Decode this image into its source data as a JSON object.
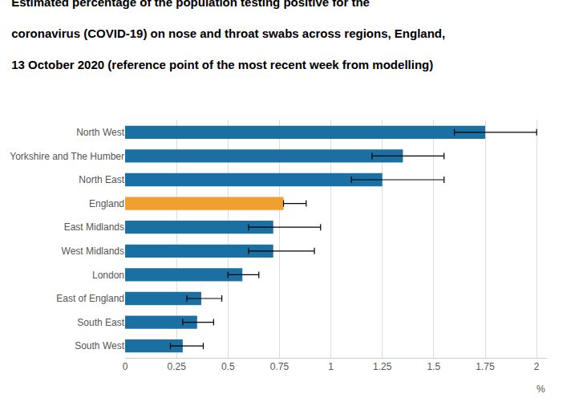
{
  "chart_data": {
    "type": "bar",
    "orientation": "horizontal",
    "title": "Estimated percentage of the population testing positive for the\ncoronavirus (COVID-19) on nose and throat swabs across regions, England,\n13 October 2020 (reference point of the most recent week from modelling)",
    "xlabel": "%",
    "categories": [
      "North West",
      "Yorkshire and The Humber",
      "North East",
      "England",
      "East Midlands",
      "West Midlands",
      "London",
      "East of England",
      "South East",
      "South West"
    ],
    "values": [
      1.75,
      1.35,
      1.25,
      0.77,
      0.72,
      0.72,
      0.57,
      0.37,
      0.35,
      0.28
    ],
    "err_low": [
      0.15,
      0.15,
      0.15,
      0.0,
      0.12,
      0.12,
      0.07,
      0.07,
      0.07,
      0.06
    ],
    "err_high": [
      0.25,
      0.2,
      0.3,
      0.11,
      0.23,
      0.2,
      0.08,
      0.1,
      0.08,
      0.1
    ],
    "colors": [
      "#1a6fa3",
      "#1a6fa3",
      "#1a6fa3",
      "#f0a030",
      "#1a6fa3",
      "#1a6fa3",
      "#1a6fa3",
      "#1a6fa3",
      "#1a6fa3",
      "#1a6fa3"
    ],
    "xlim": [
      0,
      2.05
    ],
    "xticks": [
      0,
      0.25,
      0.5,
      0.75,
      1,
      1.25,
      1.5,
      1.75,
      2
    ],
    "grid": true
  }
}
